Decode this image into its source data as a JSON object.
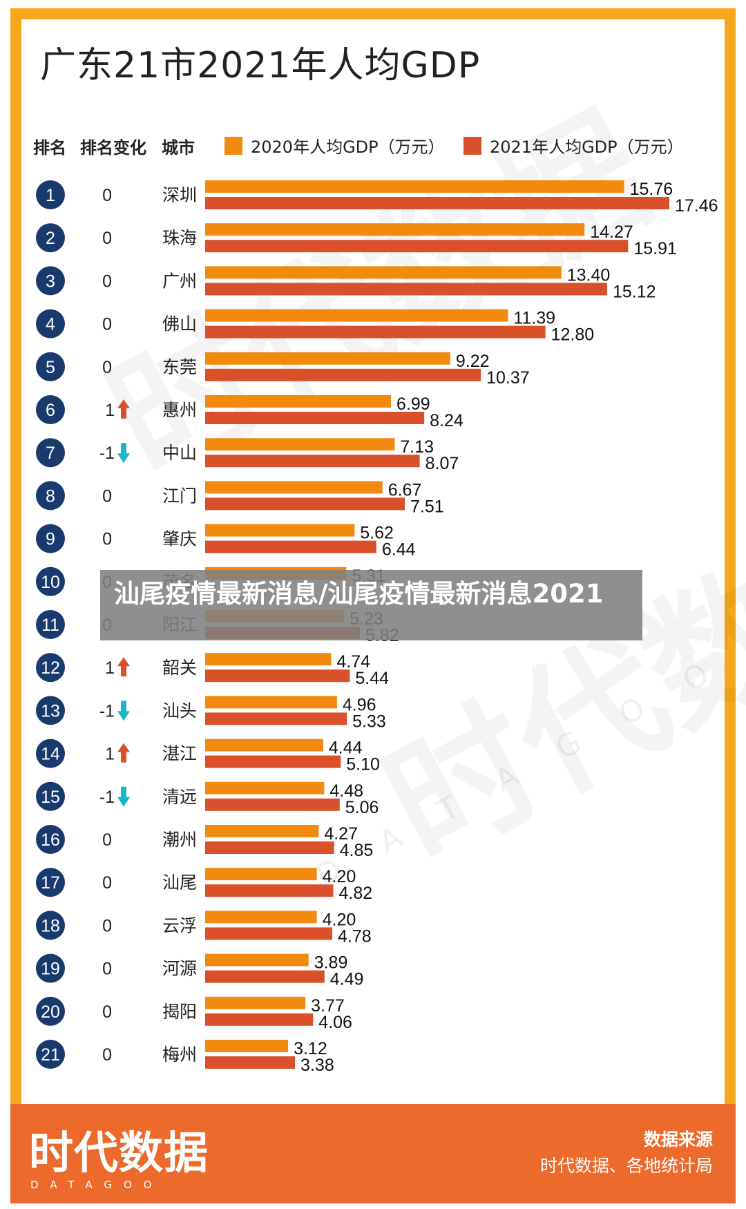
{
  "title": "广东21市2021年人均GDP",
  "headers": {
    "rank": "排名",
    "change": "排名变化",
    "city": "城市"
  },
  "banner": "汕尾疫情最新消息/汕尾疫情最新消息2021",
  "footer": {
    "logo": "时代数据",
    "logo_sub": "DATAGOO",
    "source_title": "数据来源",
    "source_text": "时代数据、各地统计局"
  },
  "watermark": {
    "text": "时代数据",
    "letters": "DATAGOO"
  },
  "colors": {
    "frame": "#f6a81c",
    "footer": "#ec6a2c",
    "series_2020": "#f28a10",
    "series_2021": "#d9502b",
    "rank_circle": "#1a3a6e",
    "arrow_up": "#d9502b",
    "arrow_down": "#19b7c8"
  },
  "chart_data": {
    "type": "bar",
    "title": "广东21市2021年人均GDP",
    "orientation": "horizontal",
    "categories": [
      "深圳",
      "珠海",
      "广州",
      "佛山",
      "东莞",
      "惠州",
      "中山",
      "江门",
      "肇庆",
      "茂名",
      "阳江",
      "韶关",
      "汕头",
      "湛江",
      "清远",
      "潮州",
      "汕尾",
      "云浮",
      "河源",
      "揭阳",
      "梅州"
    ],
    "ranks": [
      1,
      2,
      3,
      4,
      5,
      6,
      7,
      8,
      9,
      10,
      11,
      12,
      13,
      14,
      15,
      16,
      17,
      18,
      19,
      20,
      21
    ],
    "rank_changes": [
      "0",
      "0",
      "0",
      "0",
      "0",
      "1",
      "-1",
      "0",
      "0",
      "0",
      "0",
      "1",
      "-1",
      "1",
      "-1",
      "0",
      "0",
      "0",
      "0",
      "0",
      "0"
    ],
    "series": [
      {
        "name": "2020年人均GDP（万元）",
        "values": [
          15.76,
          14.27,
          13.4,
          11.39,
          9.22,
          6.99,
          7.13,
          6.67,
          5.62,
          5.31,
          5.23,
          4.74,
          4.96,
          4.44,
          4.48,
          4.27,
          4.2,
          4.2,
          3.89,
          3.77,
          3.12
        ]
      },
      {
        "name": "2021年人均GDP（万元）",
        "values": [
          17.46,
          15.91,
          15.12,
          12.8,
          10.37,
          8.24,
          8.07,
          7.51,
          6.44,
          null,
          5.82,
          5.44,
          5.33,
          5.1,
          5.06,
          4.85,
          4.82,
          4.78,
          4.49,
          4.06,
          3.38
        ]
      }
    ],
    "value_labels": [
      [
        "15.76",
        "14.27",
        "13.40",
        "11.39",
        "9.22",
        "6.99",
        "7.13",
        "6.67",
        "5.62",
        "5.31",
        "5.23",
        "4.74",
        "4.96",
        "4.44",
        "4.48",
        "4.27",
        "4.20",
        "4.20",
        "3.89",
        "3.77",
        "3.12"
      ],
      [
        "17.46",
        "15.91",
        "15.12",
        "12.80",
        "10.37",
        "8.24",
        "8.07",
        "7.51",
        "6.44",
        "",
        "5.82",
        "5.44",
        "5.33",
        "5.10",
        "5.06",
        "4.85",
        "4.82",
        "4.78",
        "4.49",
        "4.06",
        "3.38"
      ]
    ],
    "xlim": [
      0,
      17.46
    ],
    "grid": false,
    "legend": "top"
  }
}
